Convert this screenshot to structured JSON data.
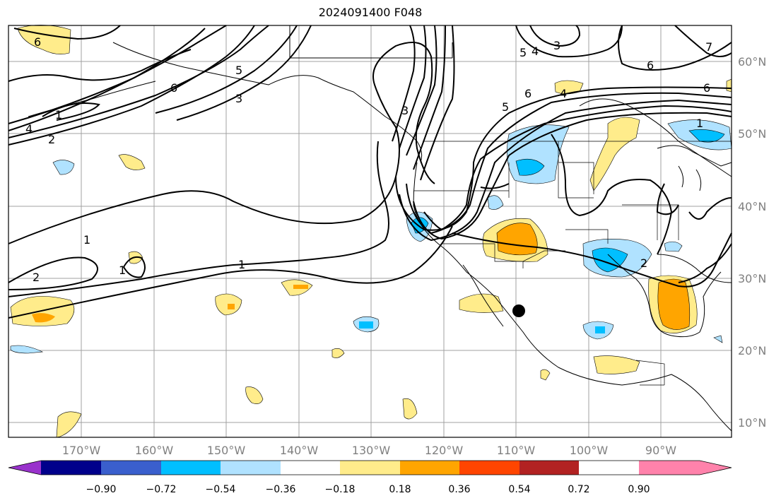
{
  "title": "2024091400 F048",
  "lon_labels": [
    "170°W",
    "160°W",
    "150°W",
    "140°W",
    "130°W",
    "120°W",
    "110°W",
    "100°W",
    "90°W"
  ],
  "lat_labels": [
    "60°N",
    "50°N",
    "40°N",
    "30°N",
    "20°N",
    "10°N"
  ],
  "colorbar": {
    "ticks": [
      "−0.90",
      "−0.72",
      "−0.54",
      "−0.36",
      "−0.18",
      "0.18",
      "0.36",
      "0.54",
      "0.72",
      "0.90"
    ],
    "colors": [
      "#9932cc",
      "#00008b",
      "#3a5fcd",
      "#00bfff",
      "#b0e2ff",
      "#ffffff",
      "#ffec8b",
      "#ffa500",
      "#ff4500",
      "#b22222",
      "#ff82ab"
    ]
  },
  "contour_labels": [
    "1",
    "1",
    "1",
    "2",
    "2",
    "3",
    "3",
    "4",
    "5",
    "6",
    "6",
    "1",
    "2",
    "4",
    "5",
    "6",
    "5",
    "4",
    "3",
    "6",
    "6",
    "7",
    "1"
  ]
}
